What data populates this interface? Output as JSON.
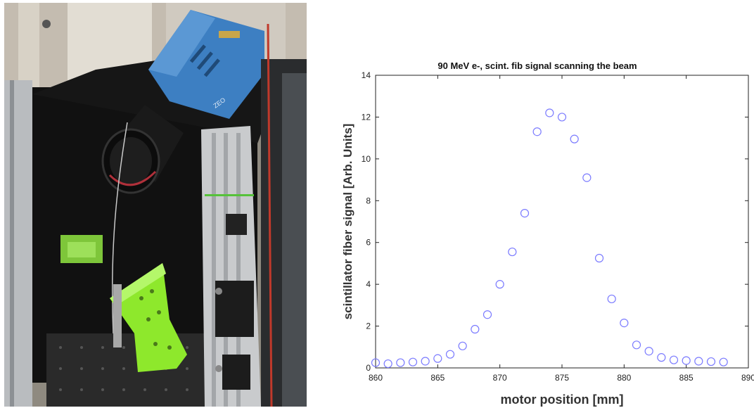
{
  "photo": {
    "alt": "Experimental setup photo",
    "camera_brand_text": "ZEO",
    "colors": {
      "camera_body": "#3d7fc2",
      "green_parts": "#8ee82c",
      "frame_silver": "#c9cbcd",
      "cloth_black": "#121212"
    }
  },
  "chart_data": {
    "type": "scatter",
    "title": "90 MeV e-, scint. fib signal scanning the beam",
    "xlabel": "motor position [mm]",
    "ylabel": "scintillator fiber signal [Arb. Units]",
    "xlim": [
      860,
      890
    ],
    "ylim": [
      0,
      14
    ],
    "xticks": [
      860,
      865,
      870,
      875,
      880,
      885,
      890
    ],
    "yticks": [
      0,
      2,
      4,
      6,
      8,
      10,
      12,
      14
    ],
    "grid": false,
    "marker": "circle-open",
    "marker_color": "#7b7bff",
    "series": [
      {
        "x": [
          860,
          861,
          862,
          863,
          864,
          865,
          866,
          867,
          868,
          869,
          870,
          871,
          872,
          873,
          874,
          875,
          876,
          877,
          878,
          879,
          880,
          881,
          882,
          883,
          884,
          885,
          886,
          887,
          888
        ],
        "y": [
          0.25,
          0.2,
          0.25,
          0.28,
          0.32,
          0.45,
          0.65,
          1.05,
          1.85,
          2.55,
          4.0,
          5.55,
          7.4,
          11.3,
          12.2,
          12.0,
          10.95,
          9.1,
          5.25,
          3.3,
          2.15,
          1.1,
          0.8,
          0.5,
          0.38,
          0.35,
          0.32,
          0.3,
          0.28
        ]
      }
    ]
  }
}
